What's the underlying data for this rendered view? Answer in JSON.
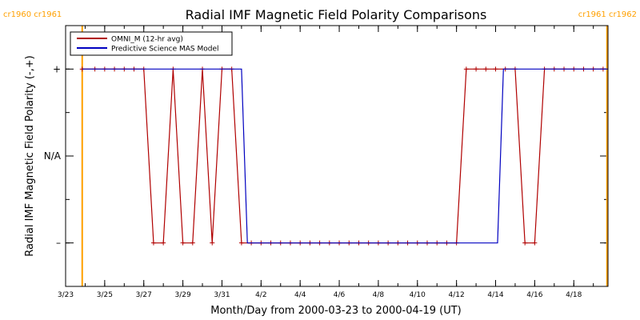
{
  "chart_data": {
    "type": "line",
    "title": "Radial IMF Magnetic Field Polarity Comparisons",
    "xlabel": "Month/Day from 2000-03-23 to 2000-04-19 (UT)",
    "ylabel": "Radial IMF Magnetic Field Polarity (-,+)",
    "x_axis": "days since 2000-03-23 00:00 UT",
    "xlim": [
      0,
      27.75
    ],
    "ylim": [
      -1.5,
      1.5
    ],
    "x_tick_labels": [
      {
        "x": 0,
        "label": "3/23"
      },
      {
        "x": 2,
        "label": "3/25"
      },
      {
        "x": 4,
        "label": "3/27"
      },
      {
        "x": 6,
        "label": "3/29"
      },
      {
        "x": 8,
        "label": "3/31"
      },
      {
        "x": 10,
        "label": "4/2"
      },
      {
        "x": 12,
        "label": "4/4"
      },
      {
        "x": 14,
        "label": "4/6"
      },
      {
        "x": 16,
        "label": "4/8"
      },
      {
        "x": 18,
        "label": "4/10"
      },
      {
        "x": 20,
        "label": "4/12"
      },
      {
        "x": 22,
        "label": "4/14"
      },
      {
        "x": 24,
        "label": "4/16"
      },
      {
        "x": 26,
        "label": "4/18"
      }
    ],
    "y_tick_labels": [
      {
        "y": 1,
        "label": "+"
      },
      {
        "y": 0,
        "label": "N/A"
      },
      {
        "y": -1,
        "label": "–"
      }
    ],
    "carrington_markers": [
      {
        "x": 0.85,
        "left_label": "cr1960",
        "right_label": "cr1961",
        "side": "left",
        "color": "#ffa000"
      },
      {
        "x": 27.7,
        "left_label": "cr1961",
        "right_label": "cr1962",
        "side": "right",
        "color": "#ffa000"
      }
    ],
    "legend": {
      "position": "top-left"
    },
    "series": [
      {
        "name": "OMNI_M (12-hr avg)",
        "color": "#b00000",
        "markers": "plus",
        "x": [
          0.85,
          1.5,
          2.0,
          2.5,
          3.0,
          3.5,
          4.0,
          4.5,
          5.0,
          5.5,
          6.0,
          6.5,
          7.0,
          7.5,
          8.0,
          8.5,
          9.0,
          9.5,
          10.0,
          10.5,
          11.0,
          11.5,
          12.0,
          12.5,
          13.0,
          13.5,
          14.0,
          14.5,
          15.0,
          15.5,
          16.0,
          16.5,
          17.0,
          17.5,
          18.0,
          18.5,
          19.0,
          19.5,
          20.0,
          20.5,
          21.0,
          21.5,
          22.0,
          22.5,
          23.0,
          23.5,
          24.0,
          24.5,
          25.0,
          25.5,
          26.0,
          26.5,
          27.0,
          27.5
        ],
        "y": [
          1,
          1,
          1,
          1,
          1,
          1,
          1,
          -1,
          -1,
          1,
          -1,
          -1,
          1,
          -1,
          1,
          1,
          -1,
          -1,
          -1,
          -1,
          -1,
          -1,
          -1,
          -1,
          -1,
          -1,
          -1,
          -1,
          -1,
          -1,
          -1,
          -1,
          -1,
          -1,
          -1,
          -1,
          -1,
          -1,
          -1,
          1,
          1,
          1,
          1,
          1,
          1,
          -1,
          -1,
          1,
          1,
          1,
          1,
          1,
          1,
          1
        ]
      },
      {
        "name": "Predictive Science MAS Model",
        "color": "#0000c0",
        "markers": "none",
        "x": [
          0.85,
          9.0,
          9.3,
          22.1,
          22.4,
          27.75
        ],
        "y": [
          1,
          1,
          -1,
          -1,
          1,
          1
        ]
      }
    ]
  }
}
